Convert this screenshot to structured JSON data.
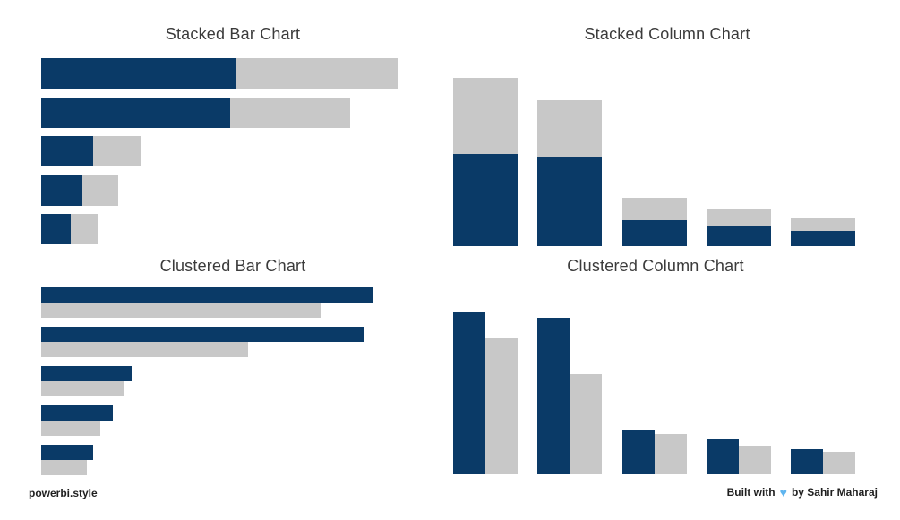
{
  "page": {
    "background": "#FFFFFF",
    "footer_left": "powerbi.style",
    "footer_right_prefix": "Built with",
    "footer_right_suffix": "by Sahir Maharaj",
    "heart_icon": "♥"
  },
  "colors": {
    "navy": "#0A3A67",
    "gray": "#C8C8C8",
    "title": "#3B3B3B",
    "footer_text": "#1F1F1F",
    "heart": "#5FB5EF"
  },
  "chart_data": [
    {
      "id": "stacked-bar",
      "type": "bar",
      "orientation": "horizontal",
      "stacked": true,
      "title": "Stacked Bar Chart",
      "axes_visible": false,
      "legend_visible": false,
      "value_axis_max": 100,
      "series": [
        {
          "name": "dark-navy",
          "color": "#0A3A67",
          "values": [
            54.5,
            53.0,
            14.6,
            11.6,
            8.3
          ]
        },
        {
          "name": "light-gray",
          "color": "#C8C8C8",
          "values": [
            45.5,
            33.7,
            13.6,
            10.1,
            7.5
          ]
        }
      ]
    },
    {
      "id": "stacked-column",
      "type": "bar",
      "orientation": "vertical",
      "stacked": true,
      "title": "Stacked Column Chart",
      "axes_visible": false,
      "legend_visible": false,
      "value_axis_max": 100,
      "series": [
        {
          "name": "dark-navy",
          "color": "#0A3A67",
          "values": [
            54.8,
            53.2,
            15.4,
            12.2,
            9.0
          ]
        },
        {
          "name": "light-gray",
          "color": "#C8C8C8",
          "values": [
            45.2,
            33.5,
            13.3,
            9.6,
            7.4
          ]
        }
      ]
    },
    {
      "id": "clustered-bar",
      "type": "bar",
      "orientation": "horizontal",
      "stacked": false,
      "title": "Clustered Bar Chart",
      "axes_visible": false,
      "legend_visible": false,
      "value_axis_max": 100,
      "series": [
        {
          "name": "dark-navy",
          "color": "#0A3A67",
          "values": [
            100,
            97.0,
            27.2,
            21.6,
            15.6
          ]
        },
        {
          "name": "light-gray",
          "color": "#C8C8C8",
          "values": [
            84.4,
            62.3,
            24.8,
            17.8,
            13.7
          ]
        }
      ]
    },
    {
      "id": "clustered-column",
      "type": "bar",
      "orientation": "vertical",
      "stacked": false,
      "title": "Clustered Column Chart",
      "axes_visible": false,
      "legend_visible": false,
      "value_axis_max": 100,
      "series": [
        {
          "name": "dark-navy",
          "color": "#0A3A67",
          "values": [
            100,
            96.7,
            27.1,
            21.5,
            15.5
          ]
        },
        {
          "name": "light-gray",
          "color": "#C8C8C8",
          "values": [
            84.0,
            61.9,
            24.9,
            17.7,
            13.8
          ]
        }
      ]
    }
  ]
}
